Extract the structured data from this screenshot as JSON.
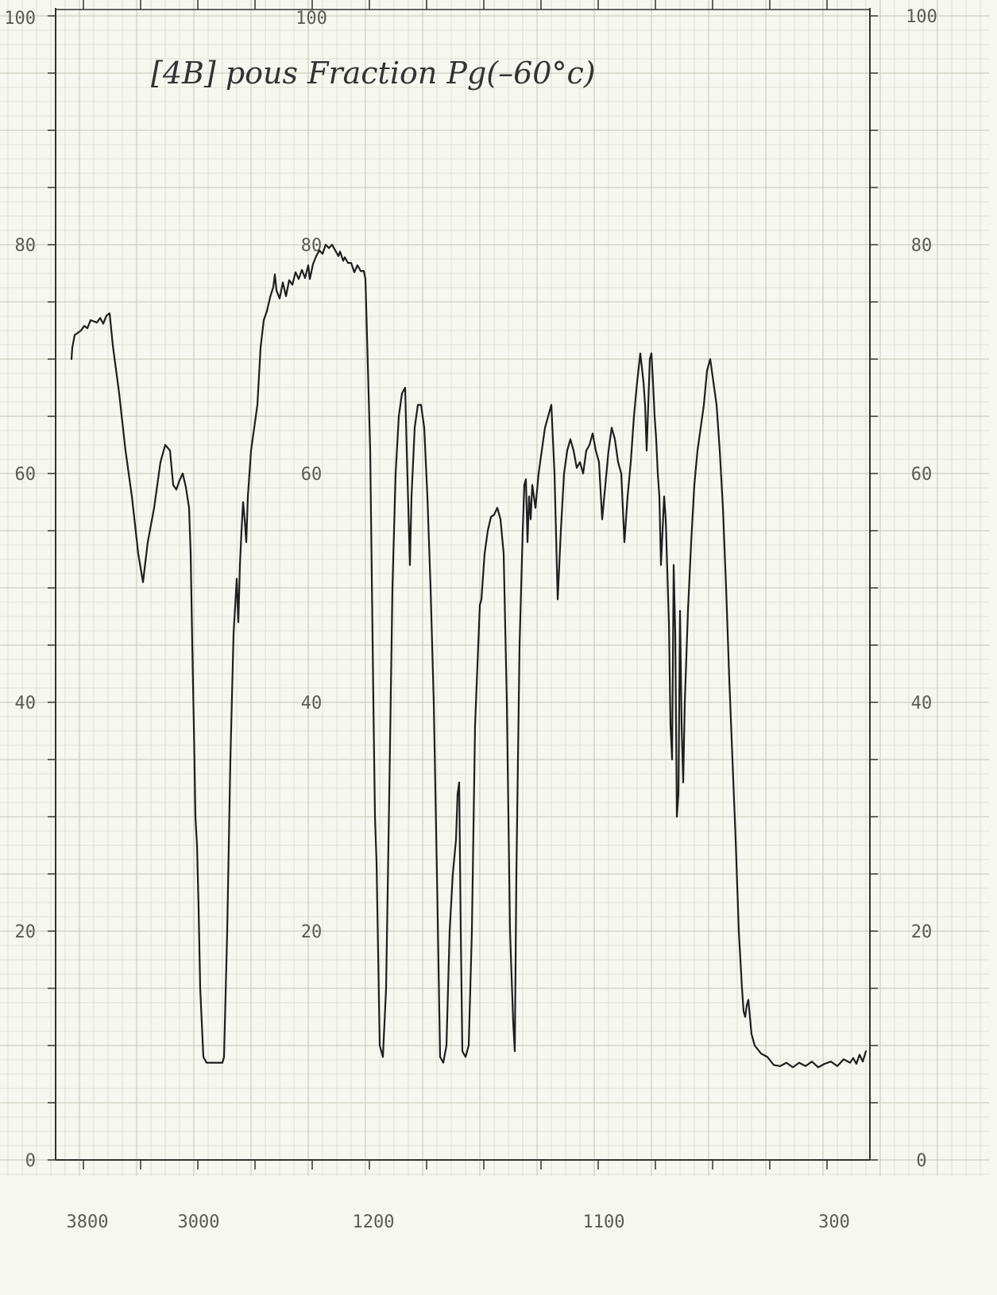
{
  "chart_data": {
    "type": "line",
    "title": "[4B]  pous Fraction  Pg(–60°c)",
    "x_tick_labels": [
      "3800",
      "3000",
      "1200",
      "1100",
      "300"
    ],
    "y_left_labels": [
      "0",
      "20",
      "40",
      "60",
      "80"
    ],
    "y_left_top_label": "100",
    "y_middle_labels": [
      "20",
      "40",
      "60",
      "80"
    ],
    "y_middle_top_label": "100",
    "y_right_labels": [
      "0",
      "20",
      "40",
      "60",
      "80",
      "100"
    ],
    "ylim": [
      0,
      100
    ],
    "grid": true,
    "series": [
      {
        "values": [
          [
            0,
            70
          ],
          [
            0.5,
            71
          ],
          [
            2,
            72.1
          ],
          [
            4,
            72.3
          ],
          [
            6,
            72.5
          ],
          [
            8,
            72.9
          ],
          [
            10,
            72.7
          ],
          [
            12,
            73.4
          ],
          [
            14,
            73.3
          ],
          [
            16,
            73.2
          ],
          [
            18,
            73.6
          ],
          [
            20,
            73.1
          ],
          [
            22,
            73.8
          ],
          [
            24,
            74
          ],
          [
            26,
            71.2
          ],
          [
            30,
            67
          ],
          [
            34,
            62
          ],
          [
            38,
            58
          ],
          [
            42,
            53
          ],
          [
            45,
            50.5
          ],
          [
            48,
            54
          ],
          [
            52,
            57
          ],
          [
            56,
            61
          ],
          [
            59,
            62.5
          ],
          [
            62,
            62
          ],
          [
            64,
            59
          ],
          [
            66,
            58.6
          ],
          [
            68,
            59.4
          ],
          [
            70,
            60
          ],
          [
            72,
            58.8
          ],
          [
            74,
            57
          ],
          [
            75,
            53
          ],
          [
            76,
            45
          ],
          [
            77,
            38
          ],
          [
            78,
            30
          ],
          [
            79,
            27.5
          ],
          [
            80,
            22
          ],
          [
            81,
            15
          ],
          [
            83,
            9
          ],
          [
            85,
            8.5
          ],
          [
            88,
            8.5
          ],
          [
            92,
            8.5
          ],
          [
            95,
            8.5
          ],
          [
            96,
            9
          ],
          [
            98,
            20
          ],
          [
            100,
            35
          ],
          [
            102,
            46
          ],
          [
            104,
            50.8
          ],
          [
            105,
            47
          ],
          [
            106,
            52
          ],
          [
            107,
            55
          ],
          [
            108,
            57.5
          ],
          [
            109,
            56
          ],
          [
            110,
            54
          ],
          [
            111,
            58
          ],
          [
            113,
            62
          ],
          [
            115,
            64
          ],
          [
            117,
            66
          ],
          [
            119,
            71
          ],
          [
            121,
            73.4
          ],
          [
            123,
            74.2
          ],
          [
            125,
            75.4
          ],
          [
            127,
            76.3
          ],
          [
            128,
            77.4
          ],
          [
            129,
            76
          ],
          [
            131,
            75.3
          ],
          [
            133,
            76.7
          ],
          [
            135,
            75.5
          ],
          [
            137,
            76.9
          ],
          [
            139,
            76.5
          ],
          [
            141,
            77.6
          ],
          [
            143,
            77
          ],
          [
            145,
            77.8
          ],
          [
            147,
            77.1
          ],
          [
            149,
            78.2
          ],
          [
            150,
            77
          ],
          [
            152,
            78.3
          ],
          [
            154,
            79
          ],
          [
            156,
            79.5
          ],
          [
            158,
            79.2
          ],
          [
            160,
            80
          ],
          [
            162,
            79.7
          ],
          [
            164,
            80
          ],
          [
            166,
            79.5
          ],
          [
            168,
            79
          ],
          [
            169,
            79.4
          ],
          [
            171,
            78.6
          ],
          [
            172,
            78.9
          ],
          [
            174,
            78.4
          ],
          [
            176,
            78.4
          ],
          [
            178,
            77.6
          ],
          [
            180,
            78.2
          ],
          [
            182,
            77.7
          ],
          [
            184,
            77.7
          ],
          [
            185,
            77
          ],
          [
            186,
            72
          ],
          [
            188,
            62
          ],
          [
            190,
            40
          ],
          [
            191,
            30
          ],
          [
            192,
            26
          ],
          [
            194,
            10
          ],
          [
            196,
            9
          ],
          [
            198,
            15
          ],
          [
            200,
            32
          ],
          [
            202,
            50
          ],
          [
            204,
            60
          ],
          [
            206,
            65
          ],
          [
            208,
            67
          ],
          [
            210,
            67.5
          ],
          [
            211,
            62
          ],
          [
            212,
            57
          ],
          [
            213,
            52
          ],
          [
            214,
            58
          ],
          [
            216,
            64
          ],
          [
            218,
            66
          ],
          [
            220,
            66
          ],
          [
            222,
            64
          ],
          [
            224,
            58
          ],
          [
            226,
            50
          ],
          [
            228,
            40
          ],
          [
            230,
            25
          ],
          [
            232,
            9
          ],
          [
            234,
            8.5
          ],
          [
            236,
            10
          ],
          [
            238,
            20
          ],
          [
            240,
            25
          ],
          [
            242,
            28
          ],
          [
            243,
            32
          ],
          [
            244,
            33
          ],
          [
            245,
            20
          ],
          [
            246,
            9.5
          ],
          [
            248,
            9
          ],
          [
            250,
            10
          ],
          [
            252,
            20
          ],
          [
            254,
            38
          ],
          [
            256,
            45
          ],
          [
            257,
            48.5
          ],
          [
            258,
            49
          ],
          [
            260,
            53
          ],
          [
            262,
            55
          ],
          [
            264,
            56.2
          ],
          [
            266,
            56.4
          ],
          [
            268,
            57
          ],
          [
            270,
            56
          ],
          [
            272,
            53
          ],
          [
            274,
            40
          ],
          [
            276,
            20
          ],
          [
            278,
            12
          ],
          [
            279,
            9.5
          ],
          [
            280,
            25
          ],
          [
            282,
            45
          ],
          [
            284,
            55
          ],
          [
            285,
            59
          ],
          [
            286,
            59.5
          ],
          [
            287,
            54
          ],
          [
            288,
            58
          ],
          [
            289,
            56
          ],
          [
            290,
            59
          ],
          [
            292,
            57
          ],
          [
            294,
            60
          ],
          [
            296,
            62
          ],
          [
            298,
            64
          ],
          [
            300,
            65
          ],
          [
            302,
            66
          ],
          [
            304,
            60
          ],
          [
            306,
            49
          ],
          [
            308,
            55
          ],
          [
            310,
            60
          ],
          [
            312,
            62
          ],
          [
            314,
            63
          ],
          [
            316,
            62
          ],
          [
            318,
            60.5
          ],
          [
            320,
            61
          ],
          [
            322,
            60
          ],
          [
            324,
            62
          ],
          [
            326,
            62.5
          ],
          [
            328,
            63.5
          ],
          [
            330,
            62
          ],
          [
            332,
            61
          ],
          [
            334,
            56
          ],
          [
            336,
            59
          ],
          [
            338,
            62
          ],
          [
            340,
            64
          ],
          [
            342,
            63
          ],
          [
            344,
            61
          ],
          [
            346,
            60
          ],
          [
            348,
            54
          ],
          [
            350,
            58
          ],
          [
            352,
            61
          ],
          [
            354,
            65
          ],
          [
            356,
            68
          ],
          [
            358,
            70.5
          ],
          [
            360,
            68
          ],
          [
            361,
            66
          ],
          [
            362,
            62
          ],
          [
            363,
            66
          ],
          [
            364,
            70
          ],
          [
            365,
            70.5
          ],
          [
            366,
            68
          ],
          [
            367,
            65
          ],
          [
            368,
            63
          ],
          [
            369,
            60
          ],
          [
            370,
            58
          ],
          [
            371,
            52
          ],
          [
            372,
            55
          ],
          [
            373,
            58
          ],
          [
            374,
            56
          ],
          [
            376,
            47
          ],
          [
            377,
            38
          ],
          [
            378,
            35
          ],
          [
            379,
            52
          ],
          [
            380,
            46
          ],
          [
            381,
            30
          ],
          [
            382,
            32
          ],
          [
            383,
            48
          ],
          [
            384,
            38
          ],
          [
            385,
            33
          ],
          [
            386,
            40
          ],
          [
            388,
            48
          ],
          [
            390,
            54
          ],
          [
            392,
            59
          ],
          [
            394,
            62
          ],
          [
            396,
            64
          ],
          [
            398,
            66
          ],
          [
            400,
            69
          ],
          [
            402,
            70
          ],
          [
            404,
            68
          ],
          [
            406,
            66
          ],
          [
            408,
            62
          ],
          [
            410,
            57
          ],
          [
            412,
            50
          ],
          [
            414,
            42
          ],
          [
            416,
            35
          ],
          [
            418,
            28
          ],
          [
            420,
            20
          ],
          [
            422,
            15
          ],
          [
            423,
            13
          ],
          [
            424,
            12.5
          ],
          [
            425,
            13.5
          ],
          [
            426,
            14
          ],
          [
            428,
            11
          ],
          [
            430,
            10
          ],
          [
            434,
            9.3
          ],
          [
            438,
            9
          ],
          [
            442,
            8.3
          ],
          [
            446,
            8.2
          ],
          [
            450,
            8.5
          ],
          [
            454,
            8.1
          ],
          [
            458,
            8.5
          ],
          [
            462,
            8.2
          ],
          [
            466,
            8.6
          ],
          [
            470,
            8.1
          ],
          [
            474,
            8.4
          ],
          [
            478,
            8.6
          ],
          [
            482,
            8.2
          ],
          [
            486,
            8.8
          ],
          [
            490,
            8.5
          ],
          [
            492,
            8.9
          ],
          [
            494,
            8.4
          ],
          [
            496,
            9.2
          ],
          [
            498,
            8.6
          ],
          [
            500,
            9.5
          ]
        ]
      }
    ]
  }
}
